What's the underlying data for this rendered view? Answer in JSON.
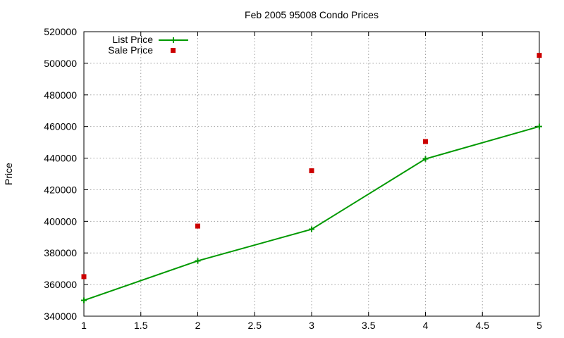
{
  "chart_data": {
    "type": "line",
    "title": "Feb 2005 95008 Condo Prices",
    "xlabel": "",
    "ylabel": "Price",
    "xlim": [
      1,
      5
    ],
    "ylim": [
      340000,
      520000
    ],
    "xticks": [
      "1",
      "1.5",
      "2",
      "2.5",
      "3",
      "3.5",
      "4",
      "4.5",
      "5"
    ],
    "yticks": [
      "340000",
      "360000",
      "380000",
      "400000",
      "420000",
      "440000",
      "460000",
      "480000",
      "500000",
      "520000"
    ],
    "grid": true,
    "legend_position": "top-left",
    "series": [
      {
        "name": "List Price",
        "style": "linespoints",
        "color": "#009900",
        "x": [
          1,
          2,
          3,
          4,
          5
        ],
        "y": [
          350000,
          375000,
          395000,
          439500,
          460000
        ]
      },
      {
        "name": "Sale Price",
        "style": "points",
        "color": "#cc0000",
        "x": [
          1,
          2,
          3,
          4,
          5
        ],
        "y": [
          365000,
          397000,
          432000,
          450500,
          505000
        ]
      }
    ]
  }
}
